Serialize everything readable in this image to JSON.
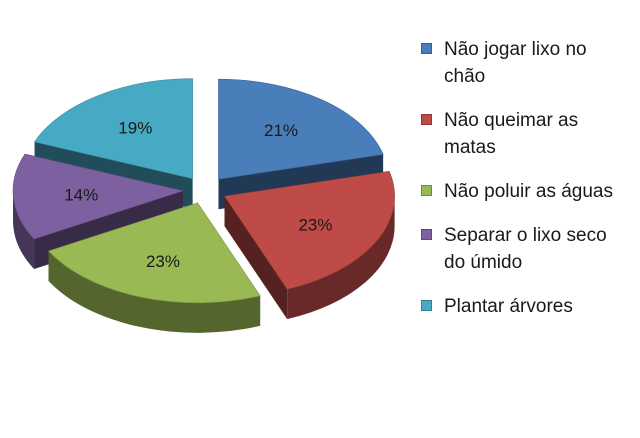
{
  "chart_data": {
    "type": "pie",
    "title": "",
    "categories": [
      "Não jogar lixo no chão",
      "Não queimar as matas",
      "Não poluir as águas",
      "Separar o lixo seco do úmido",
      "Plantar árvores"
    ],
    "values": [
      21,
      23,
      23,
      14,
      19
    ],
    "data_labels": [
      "21%",
      "23%",
      "23%",
      "14%",
      "19%"
    ],
    "colors": [
      "#4a7ebb",
      "#be4b48",
      "#98b954",
      "#7d60a0",
      "#46aac5"
    ],
    "style": "3d-exploded",
    "legend_position": "right"
  }
}
